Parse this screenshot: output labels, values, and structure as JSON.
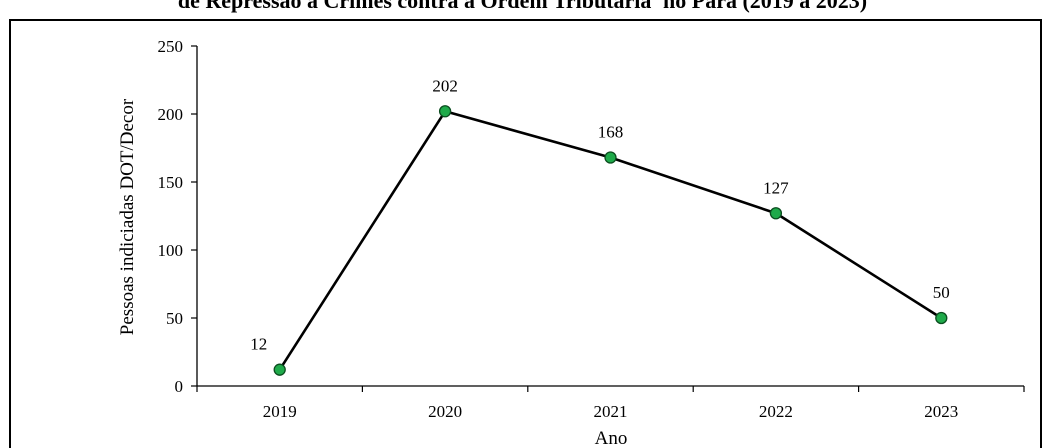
{
  "chart_data": {
    "type": "line",
    "title": "de Repressão a Crimes contra a Ordem Tributária' no Pará (2019 a 2023)",
    "xlabel": "Ano",
    "ylabel": "Pessoas indiciadas DOT/Decor",
    "categories": [
      "2019",
      "2020",
      "2021",
      "2022",
      "2023"
    ],
    "series": [
      {
        "values": [
          12,
          202,
          168,
          127,
          50
        ]
      }
    ],
    "data_labels": [
      "12",
      "202",
      "168",
      "127",
      "50"
    ],
    "ylim": [
      0,
      250
    ],
    "yticks": [
      "0",
      "50",
      "100",
      "150",
      "200",
      "250"
    ],
    "grid": false,
    "legend": "none",
    "colors": {
      "line": "#000000",
      "marker_fill": "#1faa4a",
      "marker_stroke": "#0b4d1f",
      "frame": "#000000"
    }
  }
}
